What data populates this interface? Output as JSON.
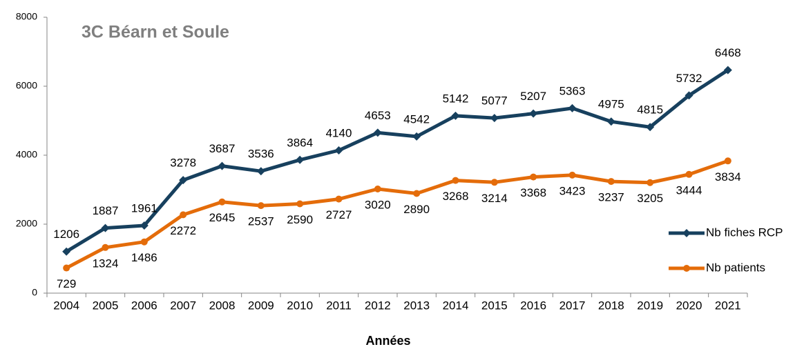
{
  "chart_data": {
    "type": "line",
    "title": "3C Béarn et Soule",
    "x_label": "Années",
    "categories": [
      "2004",
      "2005",
      "2006",
      "2007",
      "2008",
      "2009",
      "2010",
      "2011",
      "2012",
      "2013",
      "2014",
      "2015",
      "2016",
      "2017",
      "2018",
      "2019",
      "2020",
      "2021"
    ],
    "series": [
      {
        "name": "Nb fiches RCP",
        "color": "#17405e",
        "marker": "diamond",
        "values": [
          1206,
          1887,
          1961,
          3278,
          3687,
          3536,
          3864,
          4140,
          4653,
          4542,
          5142,
          5077,
          5207,
          5363,
          4975,
          4815,
          5732,
          6468
        ]
      },
      {
        "name": "Nb patients",
        "color": "#e46c0a",
        "marker": "circle",
        "values": [
          729,
          1324,
          1486,
          2272,
          2645,
          2537,
          2590,
          2727,
          3020,
          2890,
          3268,
          3214,
          3368,
          3423,
          3237,
          3205,
          3444,
          3834
        ]
      }
    ],
    "ylim": [
      0,
      8000
    ],
    "yticks": [
      0,
      2000,
      4000,
      6000,
      8000
    ],
    "grid": false,
    "legend": "right"
  }
}
